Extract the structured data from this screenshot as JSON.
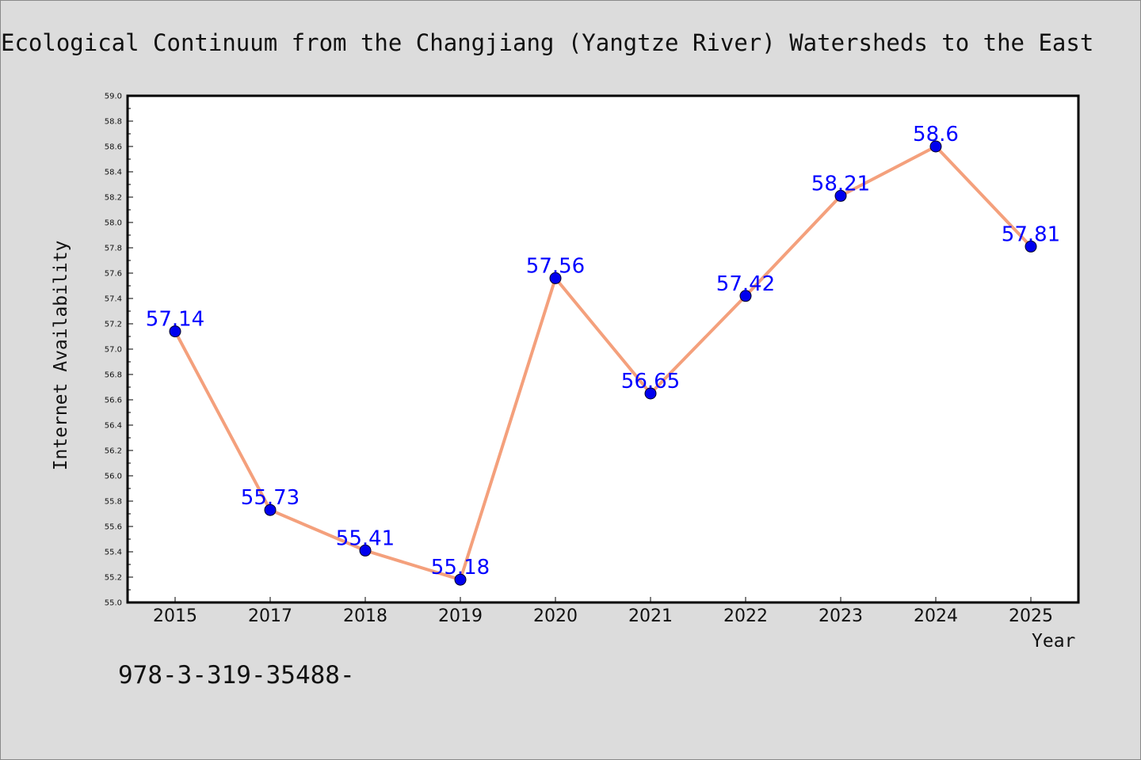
{
  "chart_data": {
    "type": "line",
    "title": "Ecological Continuum from the Changjiang (Yangtze River) Watersheds to the East",
    "xlabel": "Year",
    "ylabel": "Internet Availability",
    "categories": [
      "2015",
      "2017",
      "2018",
      "2019",
      "2020",
      "2021",
      "2022",
      "2023",
      "2024",
      "2025"
    ],
    "series": [
      {
        "values": [
          57.14,
          55.73,
          55.41,
          55.18,
          57.56,
          56.65,
          57.42,
          58.21,
          58.6,
          57.81
        ],
        "labels": [
          "57.14",
          "55.73",
          "55.41",
          "55.18",
          "57.56",
          "56.65",
          "57.42",
          "58.21",
          "58.6",
          "57.81"
        ]
      }
    ],
    "ylim": [
      55.0,
      59.0
    ],
    "yticks": [
      "55.0",
      "55.2",
      "55.4",
      "55.6",
      "55.8",
      "56.0",
      "56.2",
      "56.4",
      "56.6",
      "56.8",
      "57.0",
      "57.2",
      "57.4",
      "57.6",
      "57.8",
      "58.0",
      "58.2",
      "58.4",
      "58.6",
      "58.8",
      "59.0"
    ],
    "grid": false,
    "colors": {
      "line": "#f4a07c",
      "marker": "#0000ee",
      "data_label": "#0000ff",
      "plot_bg": "#ffffff",
      "figure_bg": "#dcdcdc"
    }
  },
  "footnote": "978-3-319-35488-"
}
